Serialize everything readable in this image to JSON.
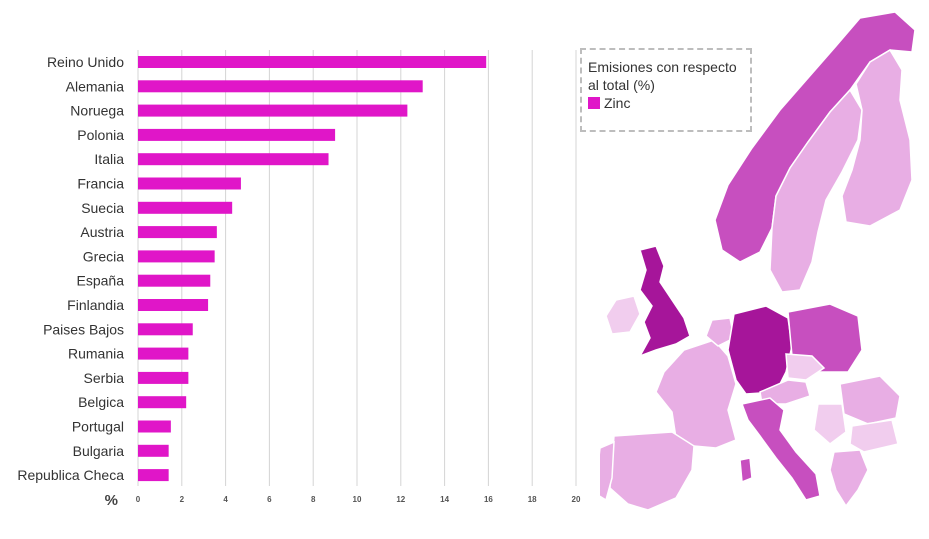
{
  "chart_data": {
    "type": "bar",
    "orientation": "horizontal",
    "categories": [
      "Reino Unido",
      "Alemania",
      "Noruega",
      "Polonia",
      "Italia",
      "Francia",
      "Suecia",
      "Austria",
      "Grecia",
      "España",
      "Finlandia",
      "Paises Bajos",
      "Rumania",
      "Serbia",
      "Belgica",
      "Portugal",
      "Bulgaria",
      "Republica Checa"
    ],
    "series": [
      {
        "name": "Zinc",
        "color": "#e016c8",
        "values": [
          15.9,
          13.0,
          12.3,
          9.0,
          8.7,
          4.7,
          4.3,
          3.6,
          3.5,
          3.3,
          3.2,
          2.5,
          2.3,
          2.3,
          2.2,
          1.5,
          1.4,
          1.4
        ]
      }
    ],
    "xlim": [
      0,
      20
    ],
    "xticks": [
      0,
      2,
      4,
      6,
      8,
      10,
      12,
      14,
      16,
      18,
      20
    ],
    "xlabel": "%",
    "grid": true,
    "legend": {
      "title": "Emisiones con respecto al total (%)",
      "entries": [
        "Zinc"
      ],
      "placement": "top-right"
    }
  },
  "map": {
    "colors": {
      "dark": "#a6159a",
      "medium": "#c74fbf",
      "light": "#e8aee4",
      "lighter": "#f1cdee"
    }
  }
}
